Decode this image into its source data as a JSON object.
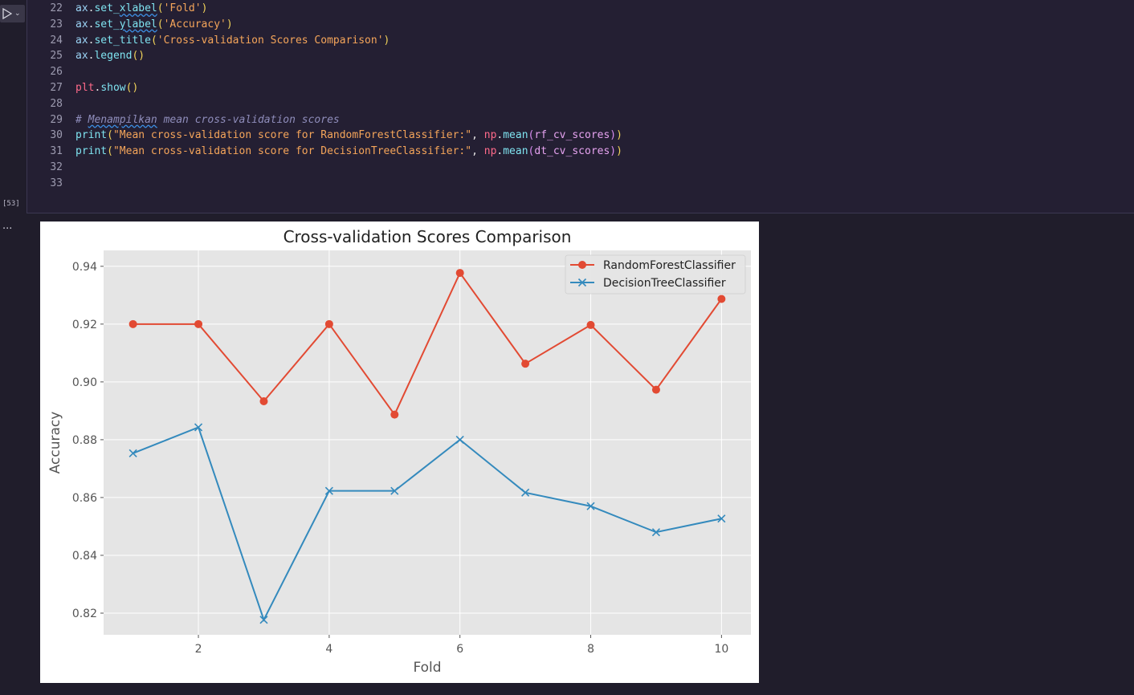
{
  "cell": {
    "execution_count": "[53]",
    "output_marker": "...",
    "run_icon": "play-icon",
    "run_menu_icon": "chevron-down-icon"
  },
  "code_lines": [
    {
      "n": "22",
      "text": "ax.set_xlabel('Fold')"
    },
    {
      "n": "23",
      "text": "ax.set_ylabel('Accuracy')"
    },
    {
      "n": "24",
      "text": "ax.set_title('Cross-validation Scores Comparison')"
    },
    {
      "n": "25",
      "text": "ax.legend()"
    },
    {
      "n": "26",
      "text": ""
    },
    {
      "n": "27",
      "text": "plt.show()"
    },
    {
      "n": "28",
      "text": ""
    },
    {
      "n": "29",
      "text": "# Menampilkan mean cross-validation scores"
    },
    {
      "n": "30",
      "text": "print(\"Mean cross-validation score for RandomForestClassifier:\", np.mean(rf_cv_scores))"
    },
    {
      "n": "31",
      "text": "print(\"Mean cross-validation score for DecisionTreeClassifier:\", np.mean(dt_cv_scores))"
    },
    {
      "n": "32",
      "text": ""
    },
    {
      "n": "33",
      "text": ""
    }
  ],
  "colors": {
    "rf_series": "#e24a33",
    "dt_series": "#348abd",
    "plot_bg": "#e5e5e5"
  },
  "chart_data": {
    "type": "line",
    "title": "Cross-validation Scores Comparison",
    "xlabel": "Fold",
    "ylabel": "Accuracy",
    "xlim": [
      0.55,
      10.45
    ],
    "ylim": [
      0.8125,
      0.9455
    ],
    "xticks": [
      2,
      4,
      6,
      8,
      10
    ],
    "xtick_labels": [
      "2",
      "4",
      "6",
      "8",
      "10"
    ],
    "yticks": [
      0.82,
      0.84,
      0.86,
      0.88,
      0.9,
      0.92,
      0.94
    ],
    "ytick_labels": [
      "0.82",
      "0.84",
      "0.86",
      "0.88",
      "0.90",
      "0.92",
      "0.94"
    ],
    "grid": true,
    "legend_position": "top-right",
    "x": [
      1,
      2,
      3,
      4,
      5,
      6,
      7,
      8,
      9,
      10
    ],
    "series": [
      {
        "name": "RandomForestClassifier",
        "marker": "circle",
        "values": [
          0.92,
          0.92,
          0.8933,
          0.92,
          0.8887,
          0.9377,
          0.9063,
          0.9197,
          0.8973,
          0.9287
        ]
      },
      {
        "name": "DecisionTreeClassifier",
        "marker": "x",
        "values": [
          0.8753,
          0.8843,
          0.8177,
          0.8623,
          0.8623,
          0.88,
          0.8617,
          0.857,
          0.848,
          0.8527
        ]
      }
    ]
  }
}
